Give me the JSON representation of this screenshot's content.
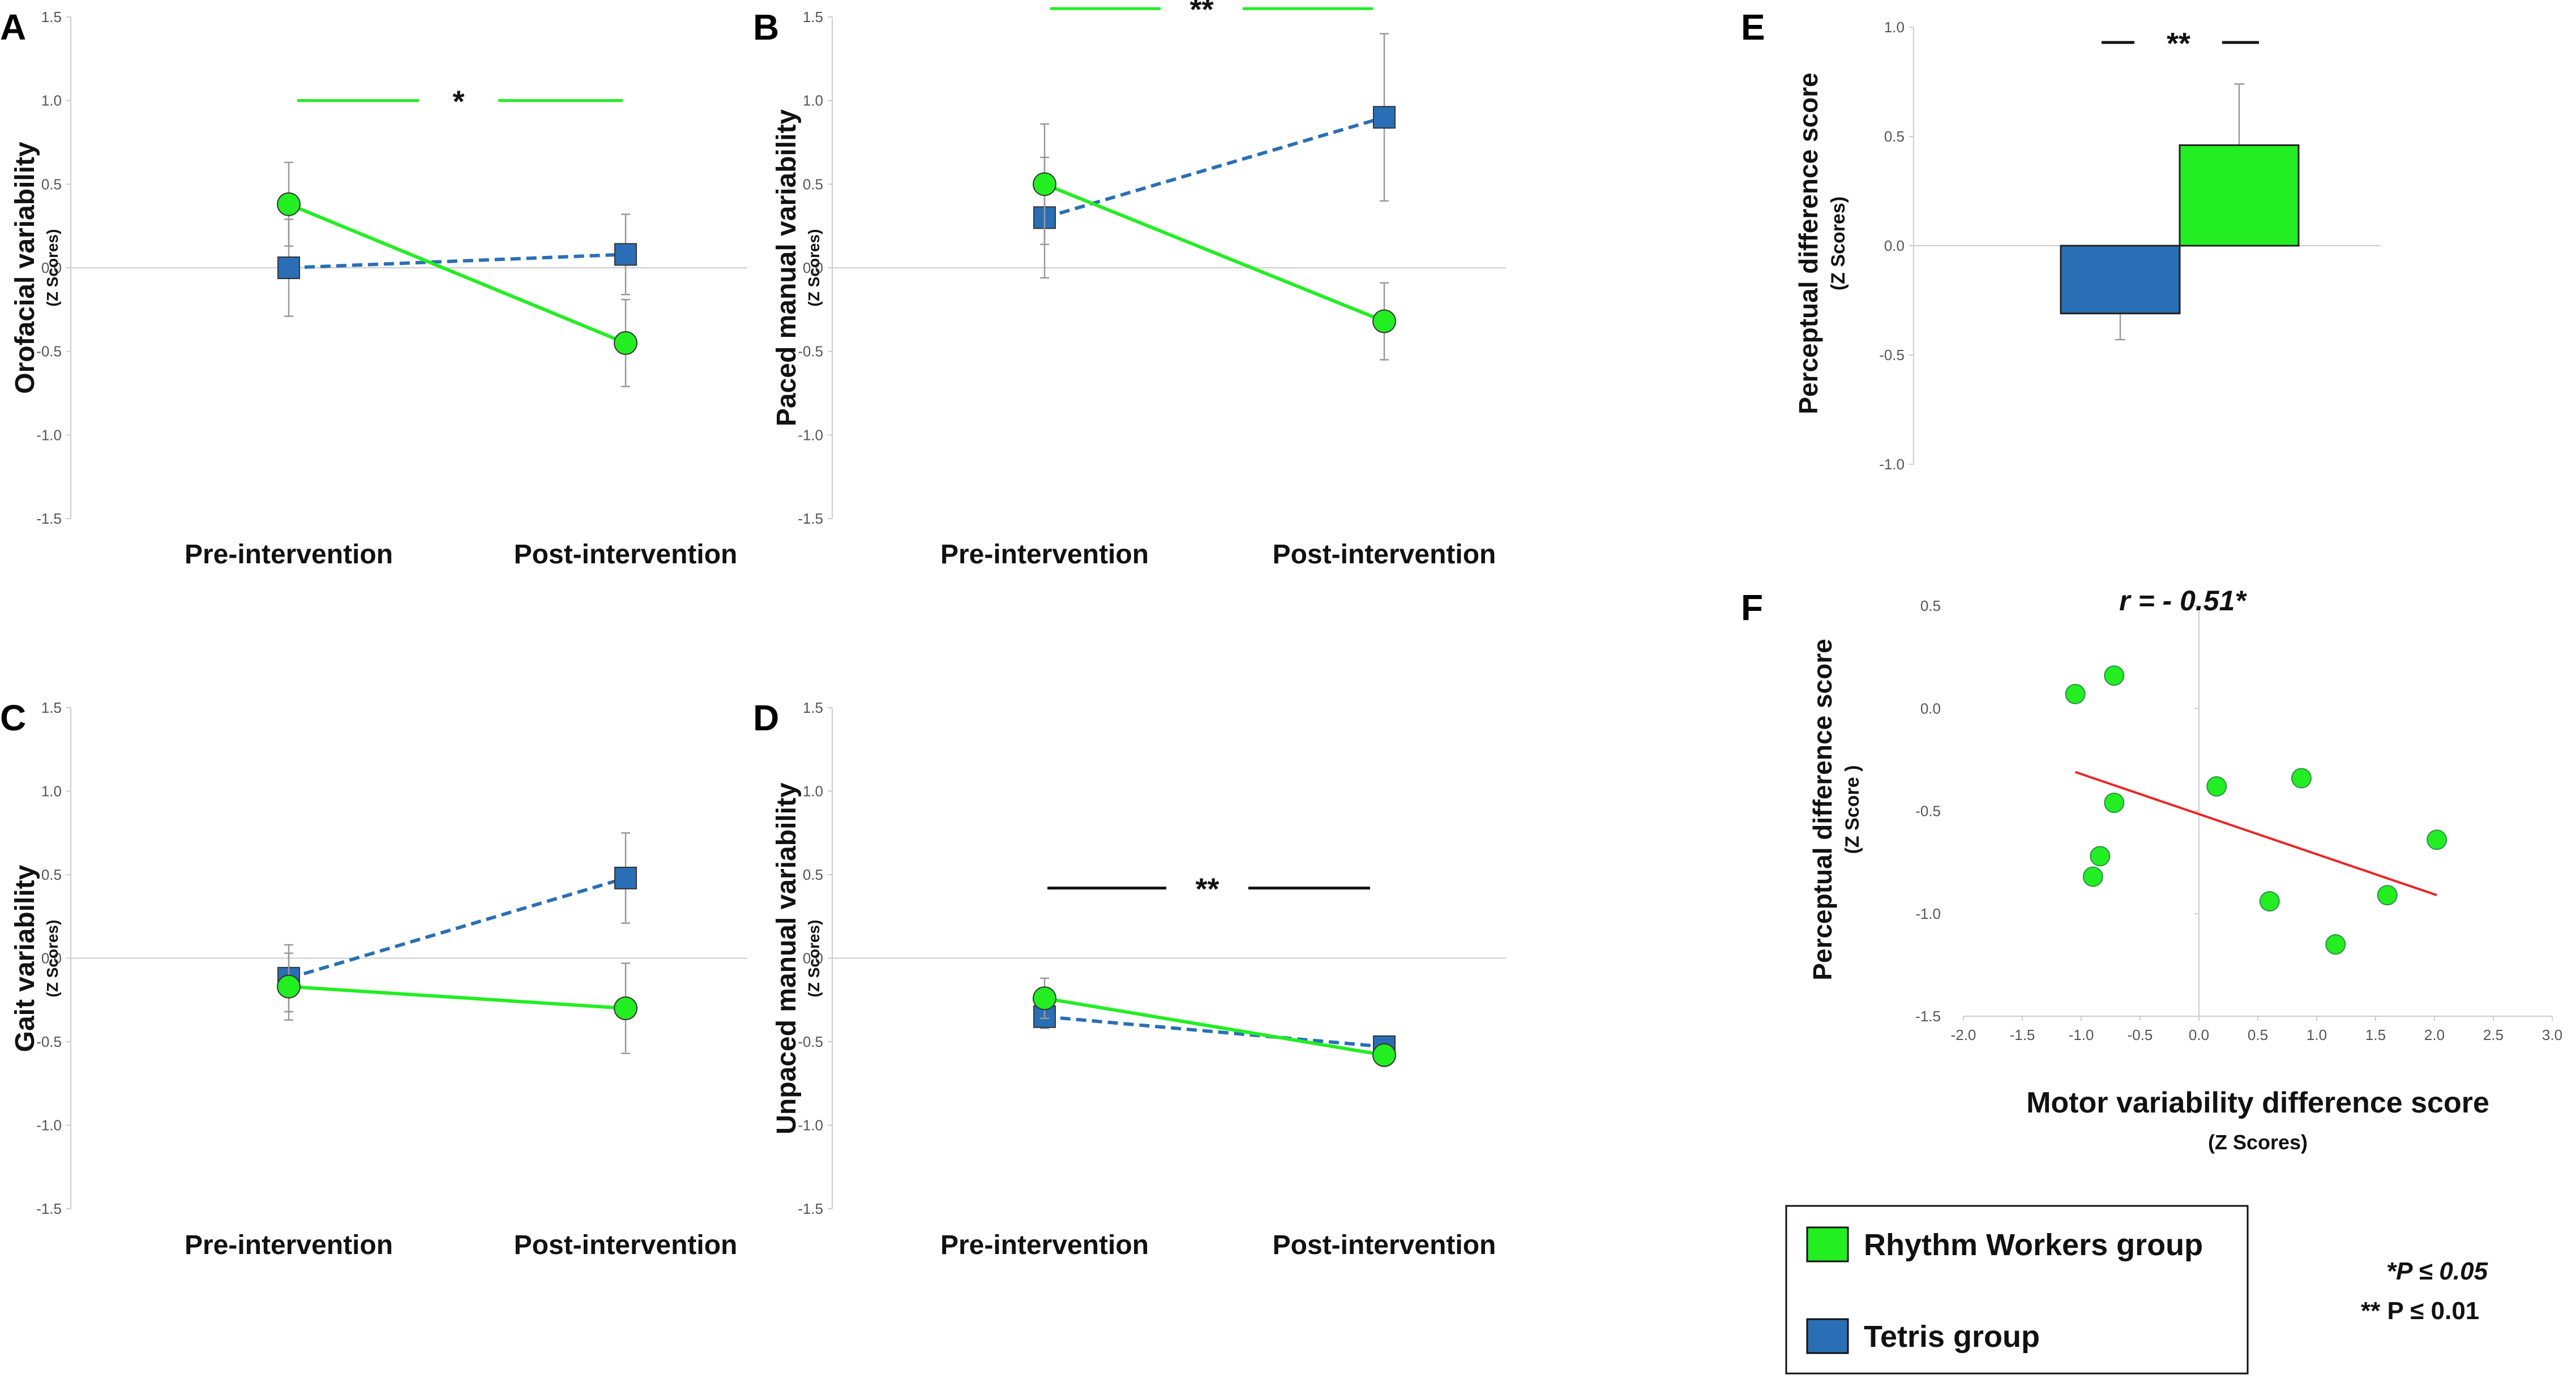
{
  "colors": {
    "rhythm": "#22ee22",
    "tetris": "#2a6fb5",
    "regression": "#ee2222",
    "black": "#111111"
  },
  "chart_data": [
    {
      "panel": "A",
      "type": "line",
      "ylabel": "Orofacial variability",
      "yunits": "(Z Scores)",
      "categories": [
        "Pre-intervention",
        "Post-intervention"
      ],
      "ylim": [
        -1.5,
        1.5
      ],
      "yticks": [
        "1.5",
        "1.0",
        "0.5",
        "0.0",
        "-0.5",
        "-1.0",
        "-1.5"
      ],
      "series": [
        {
          "name": "Rhythm Workers group",
          "values": [
            0.38,
            -0.45
          ],
          "errors": [
            0.25,
            0.26
          ]
        },
        {
          "name": "Tetris group",
          "values": [
            0.0,
            0.08
          ],
          "errors": [
            0.29,
            0.24
          ]
        }
      ],
      "significance": {
        "text": "*",
        "y": 1.0,
        "color": "rhythm"
      }
    },
    {
      "panel": "B",
      "type": "line",
      "ylabel": "Paced manual variability",
      "yunits": "(Z Scores)",
      "categories": [
        "Pre-intervention",
        "Post-intervention"
      ],
      "ylim": [
        -1.5,
        1.5
      ],
      "yticks": [
        "1.5",
        "1.0",
        "0.5",
        "0.0",
        "-0.5",
        "-1.0",
        "-1.5"
      ],
      "series": [
        {
          "name": "Rhythm Workers group",
          "values": [
            0.5,
            -0.32
          ],
          "errors": [
            0.36,
            0.23
          ]
        },
        {
          "name": "Tetris group",
          "values": [
            0.3,
            0.9
          ],
          "errors": [
            0.36,
            0.5
          ]
        }
      ],
      "significance": {
        "text": "**",
        "y": 1.55,
        "color": "rhythm"
      }
    },
    {
      "panel": "C",
      "type": "line",
      "ylabel": "Gait variability",
      "yunits": "(Z Scores)",
      "categories": [
        "Pre-intervention",
        "Post-intervention"
      ],
      "ylim": [
        -1.5,
        1.5
      ],
      "yticks": [
        "1.5",
        "1.0",
        "0.5",
        "0.0",
        "-0.5",
        "-1.0",
        "-1.5"
      ],
      "series": [
        {
          "name": "Rhythm Workers group",
          "values": [
            -0.17,
            -0.3
          ],
          "errors": [
            0.2,
            0.27
          ]
        },
        {
          "name": "Tetris group",
          "values": [
            -0.12,
            0.48
          ],
          "errors": [
            0.2,
            0.27
          ]
        }
      ],
      "significance": null
    },
    {
      "panel": "D",
      "type": "line",
      "ylabel": "Unpaced manual variability",
      "yunits": "(Z Scores)",
      "categories": [
        "Pre-intervention",
        "Post-intervention"
      ],
      "ylim": [
        -1.5,
        1.5
      ],
      "yticks": [
        "1.5",
        "1.0",
        "0.5",
        "0.0",
        "-0.5",
        "-1.0",
        "-1.5"
      ],
      "series": [
        {
          "name": "Rhythm Workers group",
          "values": [
            -0.24,
            -0.58
          ],
          "errors": [
            0.12,
            0.05
          ]
        },
        {
          "name": "Tetris group",
          "values": [
            -0.35,
            -0.53
          ],
          "errors": [
            0.07,
            0.05
          ]
        }
      ],
      "significance": {
        "text": "**",
        "y": 0.42,
        "color": "black"
      }
    },
    {
      "panel": "E",
      "type": "bar",
      "ylabel": "Perceptual difference score",
      "yunits": "(Z Scores)",
      "categories": [
        "Tetris group",
        "Rhythm Workers group"
      ],
      "values": [
        -0.31,
        0.46
      ],
      "errors": [
        0.12,
        0.28
      ],
      "ylim": [
        -1.0,
        1.0
      ],
      "yticks": [
        "1.0",
        "0.5",
        "0.0",
        "-0.5",
        "-1.0"
      ],
      "significance": {
        "text": "**",
        "y": 0.93,
        "color": "black"
      }
    },
    {
      "panel": "F",
      "type": "scatter",
      "ylabel": "Perceptual difference score",
      "yunits": "(Z Score )",
      "xlabel": "Motor variability  difference score",
      "xunits": "(Z Scores)",
      "annotation": "r = - 0.51*",
      "xlim": [
        -2.0,
        3.0
      ],
      "ylim": [
        -1.5,
        0.5
      ],
      "xticks": [
        "-2.0",
        "-1.5",
        "-1.0",
        "-0.5",
        "0.0",
        "0.5",
        "1.0",
        "1.5",
        "2.0",
        "2.5",
        "3.0"
      ],
      "yticks": [
        "0.5",
        "0.0",
        "-0.5",
        "-1.0",
        "-1.5"
      ],
      "points": [
        {
          "x": -1.05,
          "y": 0.07
        },
        {
          "x": -0.72,
          "y": 0.16
        },
        {
          "x": -0.72,
          "y": -0.46
        },
        {
          "x": -0.84,
          "y": -0.72
        },
        {
          "x": -0.9,
          "y": -0.82
        },
        {
          "x": 0.15,
          "y": -0.38
        },
        {
          "x": 0.87,
          "y": -0.34
        },
        {
          "x": 0.6,
          "y": -0.94
        },
        {
          "x": 1.16,
          "y": -1.15
        },
        {
          "x": 1.6,
          "y": -0.91
        },
        {
          "x": 2.02,
          "y": -0.64
        }
      ],
      "regression": {
        "x": [
          -1.05,
          2.02
        ],
        "y": [
          -0.31,
          -0.91
        ]
      }
    }
  ],
  "legend": {
    "items": [
      {
        "label": "Rhythm Workers group",
        "color": "rhythm"
      },
      {
        "label": "Tetris group",
        "color": "tetris"
      }
    ],
    "notes": [
      "*P ≤ 0.05",
      "** P ≤ 0.01"
    ]
  }
}
